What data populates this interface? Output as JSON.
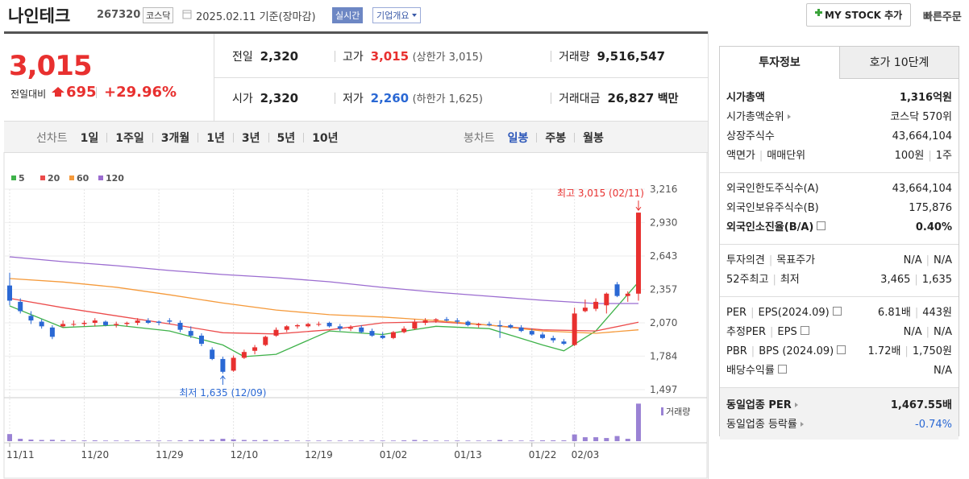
{
  "header": {
    "name": "나인테크",
    "code": "267320",
    "market": "코스닥",
    "date": "2025.02.11",
    "date_note": "기준(장마감)",
    "realtime": "실시간",
    "overview": "기업개요",
    "mystock": "MY STOCK 추가",
    "quick_order": "빠른주문"
  },
  "price": {
    "current": "3,015",
    "change_label": "전일대비",
    "change": "695",
    "rate": "+29.96%"
  },
  "summary": {
    "prev": {
      "label": "전일",
      "value": "2,320"
    },
    "open": {
      "label": "시가",
      "value": "2,320"
    },
    "high": {
      "label": "고가",
      "value": "3,015",
      "note": "(상한가 3,015)"
    },
    "low": {
      "label": "저가",
      "value": "2,260",
      "note": "(하한가 1,625)"
    },
    "volume": {
      "label": "거래량",
      "value": "9,516,547"
    },
    "amount": {
      "label": "거래대금",
      "value": "26,827",
      "unit": "백만"
    }
  },
  "toolbar": {
    "line_label": "선차트",
    "periods": [
      "1일",
      "1주일",
      "3개월",
      "1년",
      "3년",
      "5년",
      "10년"
    ],
    "candle_label": "봉차트",
    "candle_periods": [
      "일봉",
      "주봉",
      "월봉"
    ]
  },
  "chart_data": {
    "type": "candlestick",
    "up_color": "#e8302f",
    "down_color": "#2a68d4",
    "categories": [
      "11/11",
      null,
      null,
      null,
      null,
      null,
      null,
      "11/20",
      null,
      null,
      null,
      null,
      null,
      null,
      "11/29",
      null,
      null,
      null,
      null,
      null,
      null,
      "12/10",
      null,
      null,
      null,
      null,
      null,
      null,
      "12/19",
      null,
      null,
      null,
      null,
      null,
      null,
      "01/02",
      null,
      null,
      null,
      null,
      null,
      null,
      "01/13",
      null,
      null,
      null,
      null,
      null,
      null,
      "01/22",
      null,
      null,
      null,
      "02/03",
      null,
      null,
      null,
      null,
      null,
      null
    ],
    "ohlc": [
      [
        2390,
        2500,
        2220,
        2260
      ],
      [
        2250,
        2280,
        2150,
        2170
      ],
      [
        2130,
        2170,
        2060,
        2090
      ],
      [
        2080,
        2100,
        2020,
        2040
      ],
      [
        2030,
        2050,
        1930,
        1950
      ],
      [
        2040,
        2090,
        2030,
        2060
      ],
      [
        2060,
        2090,
        2040,
        2060
      ],
      [
        2060,
        2090,
        2040,
        2070
      ],
      [
        2070,
        2110,
        2040,
        2090
      ],
      [
        2080,
        2090,
        2040,
        2050
      ],
      [
        2050,
        2080,
        2030,
        2060
      ],
      [
        2060,
        2080,
        2040,
        2070
      ],
      [
        2070,
        2110,
        2050,
        2090
      ],
      [
        2090,
        2110,
        2060,
        2070
      ],
      [
        2080,
        2090,
        2050,
        2070
      ],
      [
        2090,
        2110,
        2060,
        2080
      ],
      [
        2070,
        2090,
        1990,
        2010
      ],
      [
        2000,
        2040,
        1940,
        1960
      ],
      [
        1960,
        1980,
        1870,
        1890
      ],
      [
        1840,
        1860,
        1750,
        1760
      ],
      [
        1760,
        1780,
        1635,
        1650
      ],
      [
        1660,
        1790,
        1650,
        1770
      ],
      [
        1770,
        1840,
        1760,
        1820
      ],
      [
        1830,
        1880,
        1800,
        1860
      ],
      [
        1880,
        1960,
        1870,
        1950
      ],
      [
        1960,
        2030,
        1950,
        2010
      ],
      [
        2010,
        2050,
        1990,
        2040
      ],
      [
        2040,
        2060,
        2020,
        2050
      ],
      [
        2040,
        2070,
        2030,
        2060
      ],
      [
        2060,
        2080,
        2040,
        2060
      ],
      [
        2070,
        2080,
        2030,
        2040
      ],
      [
        2040,
        2060,
        2000,
        2020
      ],
      [
        2020,
        2050,
        2000,
        2030
      ],
      [
        2030,
        2050,
        1980,
        1990
      ],
      [
        2000,
        2020,
        1950,
        1960
      ],
      [
        1960,
        1990,
        1930,
        1940
      ],
      [
        1940,
        2000,
        1930,
        1990
      ],
      [
        1990,
        2040,
        1980,
        2020
      ],
      [
        2020,
        2100,
        2010,
        2080
      ],
      [
        2070,
        2110,
        2050,
        2090
      ],
      [
        2090,
        2110,
        2070,
        2100
      ],
      [
        2100,
        2120,
        2080,
        2090
      ],
      [
        2090,
        2110,
        2060,
        2080
      ],
      [
        2080,
        2090,
        2040,
        2050
      ],
      [
        2050,
        2070,
        2030,
        2060
      ],
      [
        2060,
        2080,
        2040,
        2050
      ],
      [
        2050,
        2090,
        1940,
        2040
      ],
      [
        2050,
        2060,
        2020,
        2030
      ],
      [
        2030,
        2050,
        1990,
        2000
      ],
      [
        2000,
        2020,
        1960,
        1970
      ],
      [
        1970,
        1990,
        1930,
        1940
      ],
      [
        1940,
        1960,
        1900,
        1920
      ],
      [
        1910,
        1930,
        1880,
        1890
      ],
      [
        1880,
        2200,
        1870,
        2150
      ],
      [
        2170,
        2270,
        2160,
        2200
      ],
      [
        2190,
        2280,
        2170,
        2250
      ],
      [
        2220,
        2330,
        2150,
        2320
      ],
      [
        2400,
        2420,
        2290,
        2300
      ],
      [
        2300,
        2340,
        2250,
        2320
      ],
      [
        2320,
        3015,
        2260,
        3015
      ]
    ],
    "series": [
      {
        "name": "5",
        "color": "#3fb24a",
        "x": [
          0,
          5,
          10,
          15,
          20,
          22,
          25,
          30,
          35,
          40,
          45,
          50,
          52,
          55,
          59
        ],
        "values": [
          2215,
          2030,
          2050,
          2000,
          1880,
          1780,
          1800,
          2000,
          1970,
          2040,
          2020,
          1880,
          1830,
          2000,
          2420
        ]
      },
      {
        "name": "20",
        "color": "#ec4b4b",
        "x": [
          0,
          5,
          10,
          15,
          20,
          25,
          30,
          35,
          40,
          45,
          50,
          55,
          59
        ],
        "values": [
          2280,
          2200,
          2130,
          2060,
          1985,
          1975,
          2010,
          2070,
          2080,
          2050,
          2010,
          2000,
          2075
        ]
      },
      {
        "name": "60",
        "color": "#f59a3b",
        "x": [
          0,
          5,
          10,
          15,
          20,
          25,
          30,
          35,
          40,
          45,
          50,
          55,
          59
        ],
        "values": [
          2450,
          2420,
          2375,
          2310,
          2240,
          2180,
          2140,
          2120,
          2090,
          2050,
          2000,
          1980,
          2010
        ]
      },
      {
        "name": "120",
        "color": "#9b6cd0",
        "x": [
          0,
          5,
          10,
          15,
          20,
          25,
          30,
          35,
          40,
          45,
          50,
          55,
          59
        ],
        "values": [
          2636,
          2595,
          2560,
          2519,
          2484,
          2457,
          2422,
          2374,
          2332,
          2298,
          2263,
          2236,
          2236
        ]
      }
    ],
    "ylim": [
      1497,
      3216
    ],
    "yticks": [
      {
        "value": 3216,
        "label": "3,216"
      },
      {
        "value": 2930,
        "label": "2,930"
      },
      {
        "value": 2643,
        "label": "2,643"
      },
      {
        "value": 2357,
        "label": "2,357"
      },
      {
        "value": 2070,
        "label": "2,070"
      },
      {
        "value": 1784,
        "label": "1,784"
      },
      {
        "value": 1497,
        "label": "1,497"
      }
    ],
    "grid": true,
    "volume": {
      "name": "거래량",
      "color": "#9a82d4",
      "ylim": [
        0,
        10000000
      ],
      "values": [
        1800000,
        600000,
        400000,
        300000,
        350000,
        250000,
        200000,
        180000,
        200000,
        150000,
        150000,
        150000,
        200000,
        150000,
        150000,
        150000,
        200000,
        250000,
        300000,
        350000,
        600000,
        450000,
        300000,
        250000,
        300000,
        250000,
        200000,
        150000,
        150000,
        150000,
        150000,
        150000,
        150000,
        150000,
        150000,
        150000,
        150000,
        200000,
        300000,
        200000,
        150000,
        150000,
        150000,
        150000,
        150000,
        150000,
        300000,
        150000,
        150000,
        150000,
        200000,
        200000,
        200000,
        1700000,
        1000000,
        1000000,
        800000,
        1300000,
        600000,
        9516547
      ]
    },
    "annotations": {
      "high": {
        "text": "최고 3,015 (02/11)",
        "color": "#e8302f"
      },
      "low": {
        "text": "최저 1,635 (12/09)",
        "color": "#2a68d4"
      }
    }
  },
  "info": {
    "tabs": [
      "투자정보",
      "호가 10단계"
    ],
    "sections": [
      [
        {
          "label": [
            "시가총액"
          ],
          "value": [
            "1,316억원"
          ],
          "bold": true
        },
        {
          "label": [
            "시가총액순위"
          ],
          "value": [
            "코스닥 570위"
          ],
          "icon": "arrow"
        },
        {
          "label": [
            "상장주식수"
          ],
          "value": [
            "43,664,104"
          ]
        },
        {
          "label": [
            "액면가",
            "매매단위"
          ],
          "value": [
            "100원",
            "1주"
          ]
        }
      ],
      [
        {
          "label": [
            "외국인한도주식수(A)"
          ],
          "value": [
            "43,664,104"
          ]
        },
        {
          "label": [
            "외국인보유주식수(B)"
          ],
          "value": [
            "175,876"
          ]
        },
        {
          "label": [
            "외국인소진율(B/A)"
          ],
          "value": [
            "0.40%"
          ],
          "bold": true,
          "icon": "help"
        }
      ],
      [
        {
          "label": [
            "투자의견",
            "목표주가"
          ],
          "value": [
            "N/A",
            "N/A"
          ]
        },
        {
          "label": [
            "52주최고",
            "최저"
          ],
          "value": [
            "3,465",
            "1,635"
          ]
        }
      ],
      [
        {
          "label": [
            "PER",
            "EPS(2024.09)"
          ],
          "value": [
            "6.81배",
            "443원"
          ],
          "icon": "help"
        },
        {
          "label": [
            "추정PER",
            "EPS"
          ],
          "value": [
            "N/A",
            "N/A"
          ],
          "icon": "help"
        },
        {
          "label": [
            "PBR",
            "BPS (2024.09)"
          ],
          "value": [
            "1.72배",
            "1,750원"
          ],
          "icon": "help"
        },
        {
          "label": [
            "배당수익률"
          ],
          "value": [
            "N/A"
          ],
          "icon": "help"
        }
      ],
      [
        {
          "label": [
            "동일업종 PER"
          ],
          "value": [
            "1,467.55배"
          ],
          "bold": true,
          "icon": "arrow"
        },
        {
          "label": [
            "동일업종 등락률"
          ],
          "value": [
            "-0.74%"
          ],
          "icon": "arrow",
          "value_color": "#2a68d4"
        }
      ]
    ]
  }
}
